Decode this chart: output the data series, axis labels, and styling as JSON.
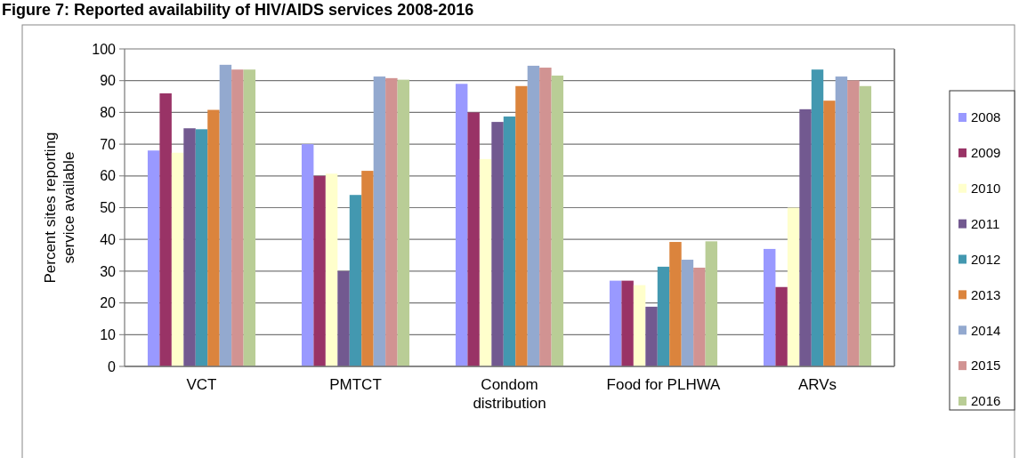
{
  "chart_data": {
    "type": "bar",
    "title": "Figure 7: Reported availability of HIV/AIDS services 2008-2016",
    "ylabel": "Percent sites reporting service available",
    "categories": [
      "VCT",
      "PMTCT",
      "Condom distribution",
      "Food for PLHWA",
      "ARVs"
    ],
    "series": [
      {
        "name": "2008",
        "color": "#9999ff",
        "values": [
          68,
          70,
          89,
          27,
          37
        ]
      },
      {
        "name": "2009",
        "color": "#993366",
        "values": [
          86,
          60,
          80,
          27,
          25
        ]
      },
      {
        "name": "2010",
        "color": "#ffffcc",
        "values": [
          67.3,
          60.7,
          65.3,
          25.6,
          50
        ]
      },
      {
        "name": "2011",
        "color": "#725990",
        "values": [
          75,
          30,
          77,
          18.8,
          81
        ]
      },
      {
        "name": "2012",
        "color": "#4398b0",
        "values": [
          74.7,
          54,
          78.7,
          31.4,
          93.5
        ]
      },
      {
        "name": "2013",
        "color": "#db843d",
        "values": [
          80.8,
          61.6,
          88.3,
          39.2,
          83.7
        ]
      },
      {
        "name": "2014",
        "color": "#93a9cf",
        "values": [
          95,
          91.3,
          94.7,
          33.6,
          91.3
        ]
      },
      {
        "name": "2015",
        "color": "#d19392",
        "values": [
          93.5,
          90.8,
          94.1,
          31.1,
          90.1
        ]
      },
      {
        "name": "2016",
        "color": "#b9cd96",
        "values": [
          93.5,
          90.3,
          91.6,
          39.4,
          88.3
        ]
      }
    ],
    "ylim": [
      0,
      100
    ],
    "yticks": [
      0,
      10,
      20,
      30,
      40,
      50,
      60,
      70,
      80,
      90,
      100
    ],
    "grid": "y",
    "legend": "right"
  }
}
